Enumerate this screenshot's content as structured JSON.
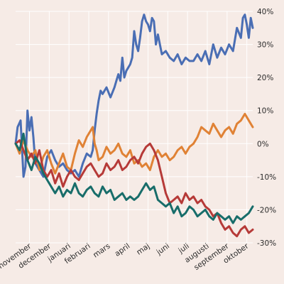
{
  "chart_data": {
    "type": "line",
    "ylim": [
      -30,
      40
    ],
    "y_ticks": [
      -30,
      -20,
      -10,
      0,
      10,
      20,
      30,
      40
    ],
    "y_unit": "%",
    "y_axis_side": "right",
    "grid": true,
    "x_domain": [
      0,
      12
    ],
    "x_ticks": [
      {
        "x": 0.7,
        "label": "november"
      },
      {
        "x": 1.7,
        "label": "december"
      },
      {
        "x": 2.7,
        "label": "januari"
      },
      {
        "x": 3.7,
        "label": "februari"
      },
      {
        "x": 4.7,
        "label": "mars"
      },
      {
        "x": 5.7,
        "label": "april"
      },
      {
        "x": 6.7,
        "label": "maj"
      },
      {
        "x": 7.7,
        "label": "juni"
      },
      {
        "x": 8.7,
        "label": "juli"
      },
      {
        "x": 9.7,
        "label": "augusti"
      },
      {
        "x": 10.7,
        "label": "september"
      },
      {
        "x": 11.7,
        "label": "oktober"
      }
    ],
    "series": [
      {
        "color": "#4a6eb4",
        "points": [
          [
            0,
            0
          ],
          [
            0.1,
            5
          ],
          [
            0.25,
            7
          ],
          [
            0.4,
            -10
          ],
          [
            0.5,
            -7
          ],
          [
            0.6,
            10
          ],
          [
            0.7,
            4
          ],
          [
            0.8,
            8
          ],
          [
            0.9,
            2
          ],
          [
            1.0,
            -6
          ],
          [
            1.2,
            -8
          ],
          [
            1.4,
            -10
          ],
          [
            1.6,
            -4
          ],
          [
            1.8,
            -2
          ],
          [
            2.0,
            -5
          ],
          [
            2.2,
            -7
          ],
          [
            2.4,
            -6
          ],
          [
            2.6,
            -8
          ],
          [
            2.8,
            -9
          ],
          [
            3.0,
            -8
          ],
          [
            3.2,
            -10
          ],
          [
            3.4,
            -6
          ],
          [
            3.6,
            -3
          ],
          [
            3.8,
            -4
          ],
          [
            3.9,
            -2
          ],
          [
            4.0,
            4
          ],
          [
            4.1,
            9
          ],
          [
            4.2,
            13
          ],
          [
            4.3,
            16
          ],
          [
            4.4,
            15
          ],
          [
            4.6,
            17
          ],
          [
            4.8,
            14
          ],
          [
            5.0,
            17
          ],
          [
            5.1,
            19
          ],
          [
            5.2,
            21
          ],
          [
            5.3,
            19
          ],
          [
            5.4,
            26
          ],
          [
            5.5,
            20
          ],
          [
            5.6,
            22
          ],
          [
            5.8,
            24
          ],
          [
            5.9,
            26
          ],
          [
            6.0,
            34
          ],
          [
            6.1,
            30
          ],
          [
            6.2,
            28
          ],
          [
            6.3,
            32
          ],
          [
            6.4,
            37
          ],
          [
            6.5,
            39
          ],
          [
            6.6,
            37
          ],
          [
            6.7,
            36
          ],
          [
            6.8,
            34
          ],
          [
            6.9,
            38
          ],
          [
            7.0,
            37
          ],
          [
            7.1,
            30
          ],
          [
            7.2,
            33
          ],
          [
            7.4,
            27
          ],
          [
            7.6,
            28
          ],
          [
            7.8,
            26
          ],
          [
            8.0,
            25
          ],
          [
            8.2,
            27
          ],
          [
            8.4,
            24
          ],
          [
            8.6,
            26
          ],
          [
            8.8,
            25
          ],
          [
            9.0,
            25
          ],
          [
            9.2,
            27
          ],
          [
            9.4,
            25
          ],
          [
            9.6,
            28
          ],
          [
            9.8,
            24
          ],
          [
            10.0,
            30
          ],
          [
            10.2,
            26
          ],
          [
            10.4,
            29
          ],
          [
            10.6,
            27
          ],
          [
            10.8,
            30
          ],
          [
            11.0,
            28
          ],
          [
            11.2,
            35
          ],
          [
            11.4,
            32
          ],
          [
            11.5,
            38
          ],
          [
            11.6,
            39
          ],
          [
            11.7,
            36
          ],
          [
            11.8,
            32
          ],
          [
            11.9,
            38
          ],
          [
            12.0,
            35
          ]
        ]
      },
      {
        "color": "#e08235",
        "points": [
          [
            0,
            0
          ],
          [
            0.2,
            -3
          ],
          [
            0.4,
            1
          ],
          [
            0.6,
            -2
          ],
          [
            0.8,
            -4
          ],
          [
            1.0,
            -2
          ],
          [
            1.2,
            -8
          ],
          [
            1.4,
            -4
          ],
          [
            1.6,
            -2
          ],
          [
            1.8,
            -6
          ],
          [
            2.0,
            -9
          ],
          [
            2.2,
            -6
          ],
          [
            2.4,
            -3
          ],
          [
            2.6,
            -7
          ],
          [
            2.8,
            -8
          ],
          [
            3.0,
            -3
          ],
          [
            3.2,
            1
          ],
          [
            3.4,
            -1
          ],
          [
            3.6,
            2
          ],
          [
            3.8,
            4
          ],
          [
            3.9,
            5
          ],
          [
            4.0,
            0
          ],
          [
            4.1,
            -2
          ],
          [
            4.2,
            -5
          ],
          [
            4.4,
            -4
          ],
          [
            4.6,
            -1
          ],
          [
            4.8,
            -3
          ],
          [
            5.0,
            -2
          ],
          [
            5.2,
            0
          ],
          [
            5.4,
            -3
          ],
          [
            5.6,
            -4
          ],
          [
            5.8,
            -2
          ],
          [
            6.0,
            -6
          ],
          [
            6.2,
            -5
          ],
          [
            6.4,
            -7
          ],
          [
            6.6,
            -6
          ],
          [
            6.8,
            -8
          ],
          [
            7.0,
            -4
          ],
          [
            7.2,
            -2
          ],
          [
            7.4,
            -4
          ],
          [
            7.6,
            -3
          ],
          [
            7.8,
            -5
          ],
          [
            8.0,
            -4
          ],
          [
            8.2,
            -2
          ],
          [
            8.4,
            -1
          ],
          [
            8.6,
            -3
          ],
          [
            8.8,
            -1
          ],
          [
            9.0,
            0
          ],
          [
            9.2,
            2
          ],
          [
            9.4,
            5
          ],
          [
            9.6,
            4
          ],
          [
            9.8,
            3
          ],
          [
            10.0,
            6
          ],
          [
            10.2,
            4
          ],
          [
            10.4,
            2
          ],
          [
            10.6,
            4
          ],
          [
            10.8,
            5
          ],
          [
            11.0,
            3
          ],
          [
            11.2,
            6
          ],
          [
            11.4,
            7
          ],
          [
            11.6,
            9
          ],
          [
            11.8,
            7
          ],
          [
            12.0,
            5
          ]
        ]
      },
      {
        "color": "#b63a38",
        "points": [
          [
            0,
            0
          ],
          [
            0.2,
            1
          ],
          [
            0.4,
            -2
          ],
          [
            0.6,
            -5
          ],
          [
            0.8,
            -3
          ],
          [
            1.0,
            -6
          ],
          [
            1.2,
            -2
          ],
          [
            1.4,
            -8
          ],
          [
            1.6,
            -10
          ],
          [
            1.8,
            -8
          ],
          [
            2.0,
            -12
          ],
          [
            2.2,
            -9
          ],
          [
            2.4,
            -13
          ],
          [
            2.6,
            -10
          ],
          [
            2.8,
            -8
          ],
          [
            3.0,
            -10
          ],
          [
            3.2,
            -11
          ],
          [
            3.4,
            -9
          ],
          [
            3.6,
            -7
          ],
          [
            3.8,
            -6
          ],
          [
            4.0,
            -8
          ],
          [
            4.2,
            -10
          ],
          [
            4.4,
            -9
          ],
          [
            4.6,
            -6
          ],
          [
            4.8,
            -8
          ],
          [
            5.0,
            -7
          ],
          [
            5.2,
            -5
          ],
          [
            5.4,
            -8
          ],
          [
            5.6,
            -7
          ],
          [
            5.8,
            -5
          ],
          [
            6.0,
            -4
          ],
          [
            6.2,
            -6
          ],
          [
            6.4,
            -3
          ],
          [
            6.6,
            -1
          ],
          [
            6.8,
            0
          ],
          [
            7.0,
            -2
          ],
          [
            7.2,
            -5
          ],
          [
            7.4,
            -10
          ],
          [
            7.6,
            -15
          ],
          [
            7.8,
            -18
          ],
          [
            8.0,
            -17
          ],
          [
            8.2,
            -16
          ],
          [
            8.4,
            -18
          ],
          [
            8.6,
            -15
          ],
          [
            8.8,
            -17
          ],
          [
            9.0,
            -16
          ],
          [
            9.2,
            -18
          ],
          [
            9.4,
            -17
          ],
          [
            9.6,
            -19
          ],
          [
            9.8,
            -20
          ],
          [
            10.0,
            -22
          ],
          [
            10.2,
            -21
          ],
          [
            10.4,
            -24
          ],
          [
            10.6,
            -26
          ],
          [
            10.8,
            -25
          ],
          [
            11.0,
            -27
          ],
          [
            11.2,
            -28
          ],
          [
            11.4,
            -26
          ],
          [
            11.6,
            -25
          ],
          [
            11.8,
            -27
          ],
          [
            12.0,
            -26
          ]
        ]
      },
      {
        "color": "#186d6a",
        "points": [
          [
            0,
            0
          ],
          [
            0.2,
            -2
          ],
          [
            0.4,
            3
          ],
          [
            0.6,
            -5
          ],
          [
            0.8,
            -8
          ],
          [
            1.0,
            -4
          ],
          [
            1.2,
            -6
          ],
          [
            1.4,
            -9
          ],
          [
            1.6,
            -11
          ],
          [
            1.8,
            -13
          ],
          [
            2.0,
            -15
          ],
          [
            2.2,
            -13
          ],
          [
            2.4,
            -16
          ],
          [
            2.6,
            -14
          ],
          [
            2.8,
            -15
          ],
          [
            3.0,
            -12
          ],
          [
            3.2,
            -15
          ],
          [
            3.4,
            -16
          ],
          [
            3.6,
            -14
          ],
          [
            3.8,
            -13
          ],
          [
            4.0,
            -15
          ],
          [
            4.2,
            -16
          ],
          [
            4.4,
            -13
          ],
          [
            4.6,
            -15
          ],
          [
            4.8,
            -14
          ],
          [
            5.0,
            -17
          ],
          [
            5.2,
            -16
          ],
          [
            5.4,
            -15
          ],
          [
            5.6,
            -17
          ],
          [
            5.8,
            -16
          ],
          [
            6.0,
            -17
          ],
          [
            6.2,
            -16
          ],
          [
            6.4,
            -14
          ],
          [
            6.6,
            -12
          ],
          [
            6.8,
            -14
          ],
          [
            7.0,
            -13
          ],
          [
            7.2,
            -17
          ],
          [
            7.4,
            -18
          ],
          [
            7.6,
            -19
          ],
          [
            7.8,
            -18
          ],
          [
            8.0,
            -21
          ],
          [
            8.2,
            -19
          ],
          [
            8.4,
            -22
          ],
          [
            8.6,
            -21
          ],
          [
            8.8,
            -19
          ],
          [
            9.0,
            -20
          ],
          [
            9.2,
            -22
          ],
          [
            9.4,
            -21
          ],
          [
            9.6,
            -20
          ],
          [
            9.8,
            -22
          ],
          [
            10.0,
            -23
          ],
          [
            10.2,
            -21
          ],
          [
            10.4,
            -22
          ],
          [
            10.6,
            -23
          ],
          [
            10.8,
            -22
          ],
          [
            11.0,
            -24
          ],
          [
            11.2,
            -22
          ],
          [
            11.4,
            -23
          ],
          [
            11.6,
            -22
          ],
          [
            11.8,
            -21
          ],
          [
            12.0,
            -19
          ]
        ]
      }
    ]
  }
}
